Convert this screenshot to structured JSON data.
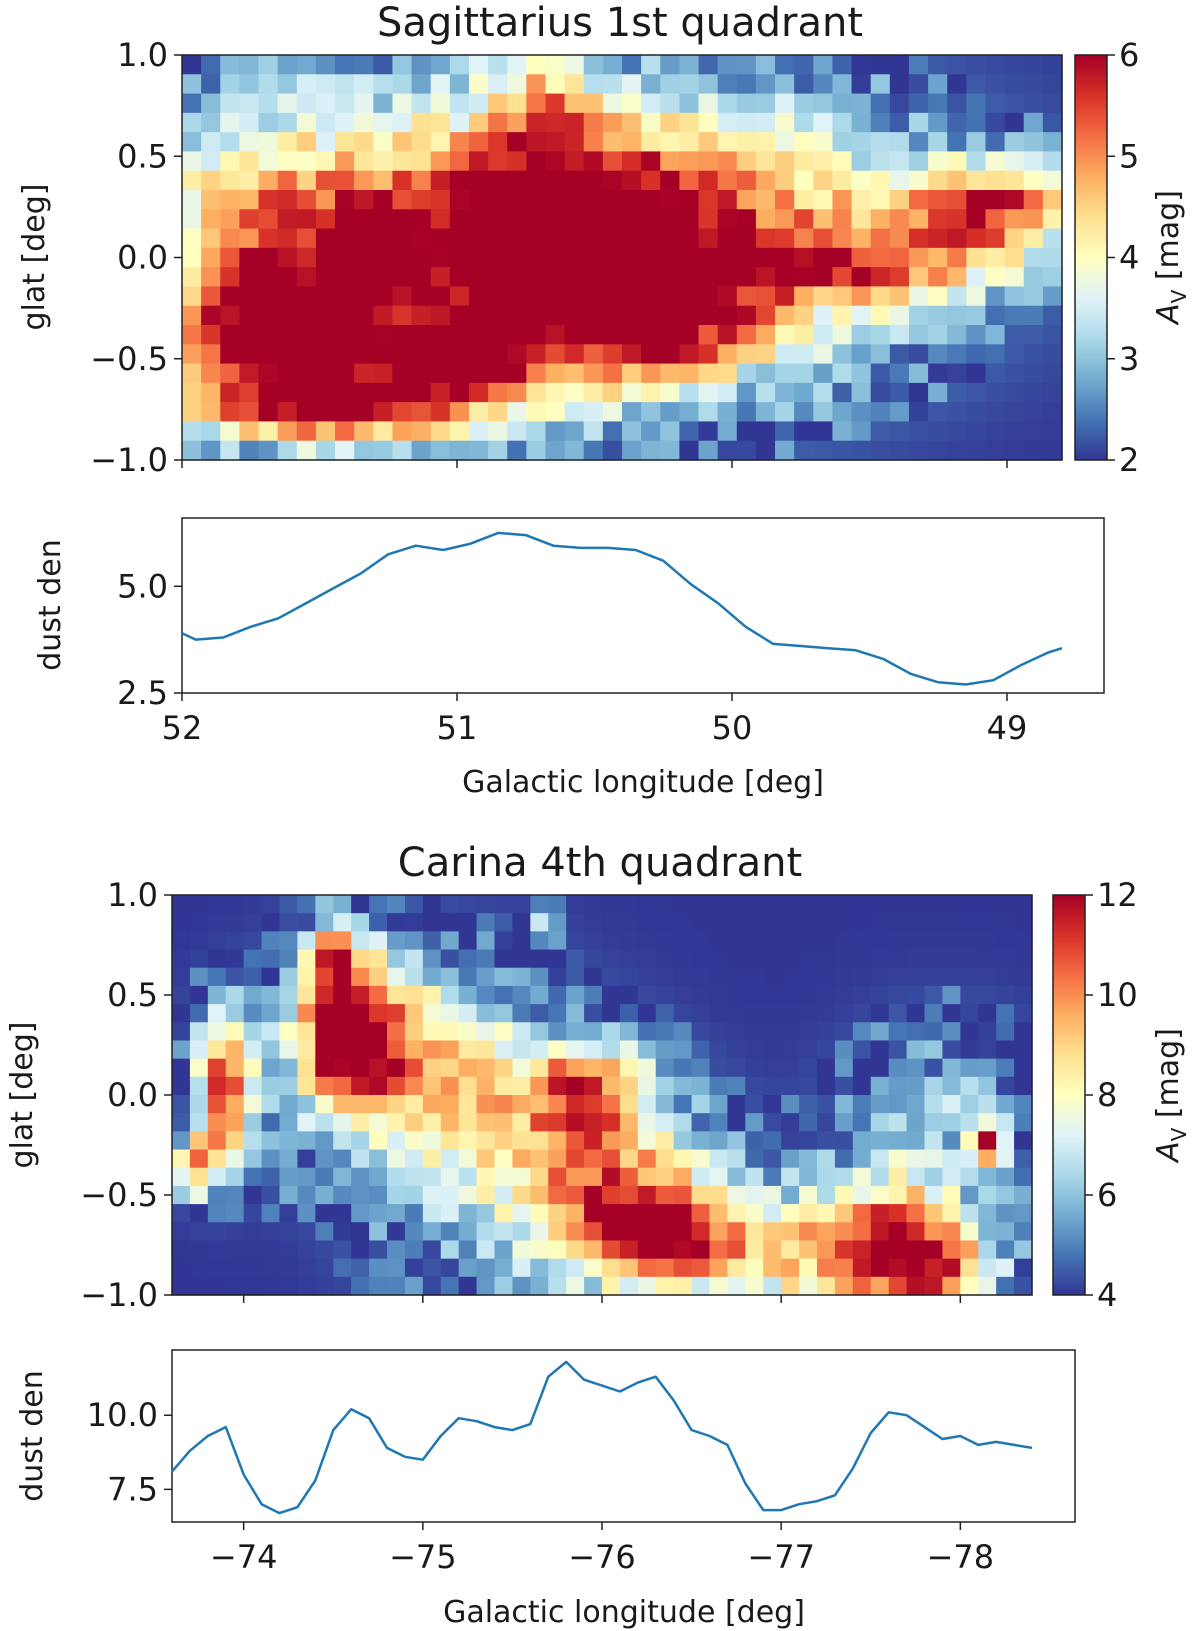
{
  "chart_data": [
    {
      "type": "heatmap",
      "title": "Sagittarius 1st quadrant",
      "ylabel": "glat [deg]",
      "xlim": [
        52,
        48.8
      ],
      "ylim": [
        -1.0,
        1.0
      ],
      "yticks": [
        -1.0,
        -0.5,
        0.0,
        0.5,
        1.0
      ],
      "ytick_labels": [
        "−1.0",
        "−0.5",
        "0.0",
        "0.5",
        "1.0"
      ],
      "colorbar": {
        "label": "A_V [mag]",
        "label_main": "A",
        "label_sub": "V",
        "label_rest": " [mag]",
        "min": 2,
        "max": 6,
        "ticks": [
          2,
          3,
          4,
          5,
          6
        ],
        "tick_labels": [
          "2",
          "3",
          "4",
          "5",
          "6"
        ]
      },
      "colormap": [
        "#313695",
        "#4575b4",
        "#74add1",
        "#abd9e9",
        "#e0f3f8",
        "#ffffbf",
        "#fee090",
        "#fdae61",
        "#f46d43",
        "#d73027",
        "#a50026"
      ],
      "background_value": 2,
      "blobs": [
        {
          "l": 50.9,
          "b": 0.15,
          "sl": 0.9,
          "sb": 0.5,
          "a": 2.8
        },
        {
          "l": 50.6,
          "b": 0.25,
          "sl": 0.35,
          "sb": 0.25,
          "a": 2.0
        },
        {
          "l": 51.3,
          "b": 0.05,
          "sl": 0.12,
          "sb": 0.15,
          "a": 2.4
        },
        {
          "l": 51.25,
          "b": -0.45,
          "sl": 0.55,
          "sb": 0.25,
          "a": 2.2
        },
        {
          "l": 50.95,
          "b": -0.5,
          "sl": 0.15,
          "sb": 0.12,
          "a": 2.2
        },
        {
          "l": 51.45,
          "b": -0.75,
          "sl": 0.4,
          "sb": 0.12,
          "a": 2.8
        },
        {
          "l": 50.3,
          "b": -0.3,
          "sl": 0.25,
          "sb": 0.22,
          "a": 2.4
        },
        {
          "l": 50.7,
          "b": 0.0,
          "sl": 0.18,
          "sb": 0.15,
          "a": 1.8
        },
        {
          "l": 49.9,
          "b": 0.05,
          "sl": 0.45,
          "sb": 0.45,
          "a": 1.6
        },
        {
          "l": 49.4,
          "b": -0.05,
          "sl": 0.3,
          "sb": 0.12,
          "a": 1.9
        },
        {
          "l": 49.05,
          "b": 0.25,
          "sl": 0.25,
          "sb": 0.15,
          "a": 3.3
        },
        {
          "l": 51.7,
          "b": -0.35,
          "sl": 0.2,
          "sb": 0.18,
          "a": 1.6
        },
        {
          "l": 51.7,
          "b": 0.0,
          "sl": 0.25,
          "sb": 0.45,
          "a": 1.4
        },
        {
          "l": 50.7,
          "b": 0.75,
          "sl": 0.15,
          "sb": 0.2,
          "a": 1.5
        }
      ],
      "profile": {
        "ylabel": "dust den",
        "xlabel": "Galactic longitude [deg]",
        "ylim": [
          2.5,
          6.6
        ],
        "yticks": [
          2.5,
          5.0
        ],
        "ytick_labels": [
          "2.5",
          "5.0"
        ],
        "xticks": [
          52,
          51,
          50,
          49
        ],
        "xtick_labels": [
          "52",
          "51",
          "50",
          "49"
        ],
        "x": [
          52.05,
          51.95,
          51.85,
          51.75,
          51.65,
          51.55,
          51.45,
          51.35,
          51.25,
          51.15,
          51.05,
          50.95,
          50.85,
          50.75,
          50.65,
          50.55,
          50.45,
          50.35,
          50.25,
          50.15,
          50.05,
          49.95,
          49.85,
          49.75,
          49.65,
          49.55,
          49.45,
          49.35,
          49.25,
          49.15,
          49.05,
          48.95,
          48.85,
          48.8
        ],
        "values": [
          3.9,
          3.75,
          3.8,
          4.05,
          4.25,
          4.6,
          4.95,
          5.3,
          5.75,
          5.95,
          5.85,
          6.0,
          6.25,
          6.2,
          5.95,
          5.9,
          5.9,
          5.85,
          5.6,
          5.05,
          4.6,
          4.05,
          3.65,
          3.6,
          3.55,
          3.5,
          3.3,
          2.95,
          2.75,
          2.7,
          2.8,
          3.15,
          3.45,
          3.55
        ]
      }
    },
    {
      "type": "heatmap",
      "title": "Carina 4th quadrant",
      "ylabel": "glat [deg]",
      "xlim": [
        -73.6,
        -78.4
      ],
      "ylim": [
        -1.0,
        1.0
      ],
      "yticks": [
        -1.0,
        -0.5,
        0.0,
        0.5,
        1.0
      ],
      "ytick_labels": [
        "−1.0",
        "−0.5",
        "0.0",
        "0.5",
        "1.0"
      ],
      "colorbar": {
        "label": "A_V [mag]",
        "label_main": "A",
        "label_sub": "V",
        "label_rest": " [mag]",
        "min": 4,
        "max": 12,
        "ticks": [
          4,
          6,
          8,
          10,
          12
        ],
        "tick_labels": [
          "4",
          "6",
          "8",
          "10",
          "12"
        ]
      },
      "colormap": [
        "#313695",
        "#4575b4",
        "#74add1",
        "#abd9e9",
        "#e0f3f8",
        "#ffffbf",
        "#fee090",
        "#fdae61",
        "#f46d43",
        "#d73027",
        "#a50026"
      ],
      "background_value": 4,
      "blobs": [
        {
          "l": -73.9,
          "b": 0.05,
          "sl": 0.12,
          "sb": 0.25,
          "a": 7.0
        },
        {
          "l": -73.75,
          "b": -0.35,
          "sl": 0.1,
          "sb": 0.12,
          "a": 5.0
        },
        {
          "l": -74.55,
          "b": 0.35,
          "sl": 0.2,
          "sb": 0.3,
          "a": 7.5
        },
        {
          "l": -74.9,
          "b": 0.2,
          "sl": 0.35,
          "sb": 0.3,
          "a": 4.0
        },
        {
          "l": -75.3,
          "b": -0.2,
          "sl": 0.45,
          "sb": 0.45,
          "a": 3.0
        },
        {
          "l": -76.0,
          "b": -0.45,
          "sl": 0.35,
          "sb": 0.35,
          "a": 5.5
        },
        {
          "l": -75.9,
          "b": 0.05,
          "sl": 0.25,
          "sb": 0.15,
          "a": 4.5
        },
        {
          "l": -76.3,
          "b": -0.7,
          "sl": 0.25,
          "sb": 0.15,
          "a": 4.5
        },
        {
          "l": -76.6,
          "b": -0.7,
          "sl": 0.35,
          "sb": 0.3,
          "a": 2.5
        },
        {
          "l": -77.6,
          "b": -0.75,
          "sl": 0.3,
          "sb": 0.25,
          "a": 6.5
        },
        {
          "l": -77.9,
          "b": -0.85,
          "sl": 0.25,
          "sb": 0.15,
          "a": 4.0
        },
        {
          "l": -77.9,
          "b": -0.1,
          "sl": 0.35,
          "sb": 0.3,
          "a": 2.0
        },
        {
          "l": -78.15,
          "b": -0.25,
          "sl": 0.06,
          "sb": 0.08,
          "a": 7.0
        },
        {
          "l": -74.5,
          "b": 0.7,
          "sl": 0.08,
          "sb": 0.1,
          "a": 3.5
        },
        {
          "l": -75.7,
          "b": 0.9,
          "sl": 0.05,
          "sb": 0.08,
          "a": 3.0
        },
        {
          "l": -74.2,
          "b": -0.55,
          "sl": 0.05,
          "sb": 0.05,
          "a": 2.0
        },
        {
          "l": -77.0,
          "b": -0.8,
          "sl": 0.35,
          "sb": 0.2,
          "a": 3.0
        }
      ],
      "profile": {
        "ylabel": "dust den",
        "xlabel": "Galactic longitude [deg]",
        "ylim": [
          6.4,
          12.2
        ],
        "yticks": [
          7.5,
          10.0
        ],
        "ytick_labels": [
          "7.5",
          "10.0"
        ],
        "xticks": [
          -74,
          -75,
          -76,
          -77,
          -78
        ],
        "xtick_labels": [
          "−74",
          "−75",
          "−76",
          "−77",
          "−78"
        ],
        "x": [
          -73.6,
          -73.7,
          -73.8,
          -73.9,
          -74.0,
          -74.1,
          -74.2,
          -74.3,
          -74.4,
          -74.5,
          -74.6,
          -74.7,
          -74.8,
          -74.9,
          -75.0,
          -75.1,
          -75.2,
          -75.3,
          -75.4,
          -75.5,
          -75.6,
          -75.7,
          -75.8,
          -75.9,
          -76.0,
          -76.1,
          -76.2,
          -76.3,
          -76.4,
          -76.5,
          -76.6,
          -76.7,
          -76.8,
          -76.9,
          -77.0,
          -77.1,
          -77.2,
          -77.3,
          -77.4,
          -77.5,
          -77.6,
          -77.7,
          -77.8,
          -77.9,
          -78.0,
          -78.1,
          -78.2,
          -78.3,
          -78.4
        ],
        "values": [
          8.1,
          8.8,
          9.3,
          9.6,
          8.0,
          7.0,
          6.7,
          6.9,
          7.8,
          9.5,
          10.2,
          9.9,
          8.9,
          8.6,
          8.5,
          9.3,
          9.9,
          9.8,
          9.6,
          9.5,
          9.7,
          11.3,
          11.8,
          11.2,
          11.0,
          10.8,
          11.1,
          11.3,
          10.5,
          9.5,
          9.3,
          9.0,
          7.7,
          6.8,
          6.8,
          7.0,
          7.1,
          7.3,
          8.2,
          9.4,
          10.1,
          10.0,
          9.6,
          9.2,
          9.3,
          9.0,
          9.1,
          9.0,
          8.9
        ]
      }
    }
  ]
}
